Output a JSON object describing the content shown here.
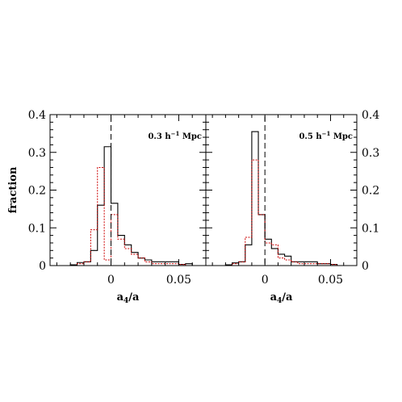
{
  "chart_data": [
    {
      "type": "histogram",
      "label_html": [
        "0.3 h",
        "−1",
        " Mpc"
      ],
      "xlabel_parts": [
        "a",
        "4",
        "/a"
      ],
      "ylabel": "fraction",
      "xlim": [
        -0.045,
        0.07
      ],
      "ylim": [
        0,
        0.4
      ],
      "xticks": [
        "0",
        "0.05"
      ],
      "xtick_values": [
        0,
        0.05
      ],
      "yticks": [
        "0",
        "0.1",
        "0.2",
        "0.3",
        "0.4"
      ],
      "ytick_values": [
        0,
        0.1,
        0.2,
        0.3,
        0.4
      ],
      "yaxis_side": "left",
      "reference_line_x": 0,
      "bin_edges": [
        -0.045,
        -0.04,
        -0.035,
        -0.03,
        -0.025,
        -0.02,
        -0.015,
        -0.01,
        -0.005,
        0,
        0.005,
        0.01,
        0.015,
        0.02,
        0.025,
        0.03,
        0.035,
        0.04,
        0.045,
        0.05,
        0.055,
        0.06,
        0.065,
        0.07
      ],
      "series": [
        {
          "color": "#000000",
          "dash": "solid",
          "values": [
            0,
            0,
            0,
            0.002,
            0.008,
            0.01,
            0.04,
            0.16,
            0.315,
            0.165,
            0.08,
            0.055,
            0.035,
            0.02,
            0.015,
            0.01,
            0.01,
            0.01,
            0.01,
            0.003,
            0.005,
            0,
            0
          ]
        },
        {
          "color": "#cc0000",
          "dash": "dotted",
          "values": [
            0,
            0,
            0,
            0,
            0.005,
            0.01,
            0.095,
            0.26,
            0.015,
            0.135,
            0.07,
            0.045,
            0.03,
            0.02,
            0.01,
            0.005,
            0.005,
            0.005,
            0.005,
            0.003,
            0,
            0,
            0
          ]
        }
      ]
    },
    {
      "type": "histogram",
      "label_html": [
        "0.5 h",
        "−1",
        " Mpc"
      ],
      "xlabel_parts": [
        "a",
        "4",
        "/a"
      ],
      "ylabel": "",
      "xlim": [
        -0.045,
        0.07
      ],
      "ylim": [
        0,
        0.4
      ],
      "xticks": [
        "0",
        "0.05"
      ],
      "xtick_values": [
        0,
        0.05
      ],
      "yticks": [
        "0",
        "0.1",
        "0.2",
        "0.3",
        "0.4"
      ],
      "ytick_values": [
        0,
        0.1,
        0.2,
        0.3,
        0.4
      ],
      "yaxis_side": "right",
      "reference_line_x": 0,
      "bin_edges": [
        -0.045,
        -0.04,
        -0.035,
        -0.03,
        -0.025,
        -0.02,
        -0.015,
        -0.01,
        -0.005,
        0,
        0.005,
        0.01,
        0.015,
        0.02,
        0.025,
        0.03,
        0.035,
        0.04,
        0.045,
        0.05,
        0.055,
        0.06,
        0.065,
        0.07
      ],
      "series": [
        {
          "color": "#000000",
          "dash": "solid",
          "values": [
            0,
            0,
            0,
            0.002,
            0.007,
            0.01,
            0.055,
            0.355,
            0.135,
            0.07,
            0.045,
            0.03,
            0.025,
            0.01,
            0.01,
            0.01,
            0.01,
            0.005,
            0.005,
            0.003,
            0,
            0,
            0
          ]
        },
        {
          "color": "#cc0000",
          "dash": "dotted",
          "values": [
            0,
            0,
            0,
            0,
            0.005,
            0.01,
            0.075,
            0.28,
            0.135,
            0.06,
            0.055,
            0.02,
            0.015,
            0.01,
            0.005,
            0.005,
            0.005,
            0.005,
            0.005,
            0.003,
            0,
            0,
            0
          ]
        }
      ]
    }
  ]
}
